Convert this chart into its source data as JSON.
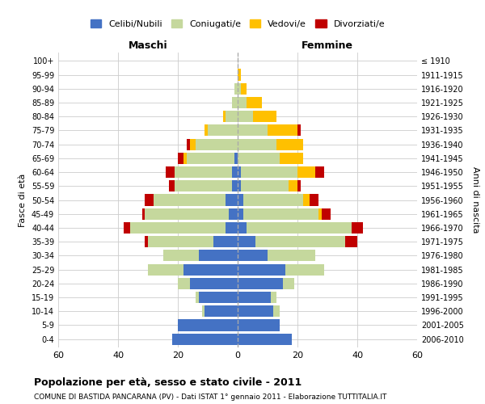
{
  "age_groups": [
    "0-4",
    "5-9",
    "10-14",
    "15-19",
    "20-24",
    "25-29",
    "30-34",
    "35-39",
    "40-44",
    "45-49",
    "50-54",
    "55-59",
    "60-64",
    "65-69",
    "70-74",
    "75-79",
    "80-84",
    "85-89",
    "90-94",
    "95-99",
    "100+"
  ],
  "birth_years": [
    "2006-2010",
    "2001-2005",
    "1996-2000",
    "1991-1995",
    "1986-1990",
    "1981-1985",
    "1976-1980",
    "1971-1975",
    "1966-1970",
    "1961-1965",
    "1956-1960",
    "1951-1955",
    "1946-1950",
    "1941-1945",
    "1936-1940",
    "1931-1935",
    "1926-1930",
    "1921-1925",
    "1916-1920",
    "1911-1915",
    "≤ 1910"
  ],
  "colors": {
    "celibi": "#4472c4",
    "coniugati": "#c5d89d",
    "vedovi": "#ffc000",
    "divorziati": "#c00000"
  },
  "males": {
    "celibi": [
      22,
      20,
      11,
      13,
      16,
      18,
      13,
      8,
      4,
      3,
      4,
      2,
      2,
      1,
      0,
      0,
      0,
      0,
      0,
      0,
      0
    ],
    "coniugati": [
      0,
      0,
      1,
      1,
      4,
      12,
      12,
      22,
      32,
      28,
      24,
      19,
      19,
      16,
      14,
      10,
      4,
      2,
      1,
      0,
      0
    ],
    "vedovi": [
      0,
      0,
      0,
      0,
      0,
      0,
      0,
      0,
      0,
      0,
      0,
      0,
      0,
      1,
      2,
      1,
      1,
      0,
      0,
      0,
      0
    ],
    "divorziati": [
      0,
      0,
      0,
      0,
      0,
      0,
      0,
      1,
      2,
      1,
      3,
      2,
      3,
      2,
      1,
      0,
      0,
      0,
      0,
      0,
      0
    ]
  },
  "females": {
    "celibi": [
      18,
      14,
      12,
      11,
      15,
      16,
      10,
      6,
      3,
      2,
      2,
      1,
      1,
      0,
      0,
      0,
      0,
      0,
      0,
      0,
      0
    ],
    "coniugati": [
      0,
      0,
      2,
      2,
      4,
      13,
      16,
      30,
      35,
      25,
      20,
      16,
      19,
      14,
      13,
      10,
      5,
      3,
      1,
      0,
      0
    ],
    "vedovi": [
      0,
      0,
      0,
      0,
      0,
      0,
      0,
      0,
      0,
      1,
      2,
      3,
      6,
      8,
      9,
      10,
      8,
      5,
      2,
      1,
      0
    ],
    "divorziati": [
      0,
      0,
      0,
      0,
      0,
      0,
      0,
      4,
      4,
      3,
      3,
      1,
      3,
      0,
      0,
      1,
      0,
      0,
      0,
      0,
      0
    ]
  },
  "xlim": 60,
  "xlabel_left": "Maschi",
  "xlabel_right": "Femmine",
  "ylabel": "Fasce di età",
  "ylabel_right": "Anni di nascita",
  "title": "Popolazione per età, sesso e stato civile - 2011",
  "subtitle": "COMUNE DI BASTIDA PANCARANA (PV) - Dati ISTAT 1° gennaio 2011 - Elaborazione TUTTITALIA.IT",
  "legend_labels": [
    "Celibi/Nubili",
    "Coniugati/e",
    "Vedovi/e",
    "Divorziati/e"
  ],
  "background_color": "#ffffff",
  "grid_color": "#cccccc"
}
